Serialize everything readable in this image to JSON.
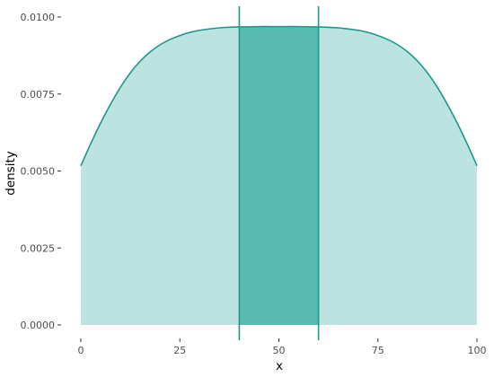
{
  "chart_data": {
    "type": "area",
    "xlabel": "x",
    "ylabel": "density",
    "xlim": [
      0,
      100
    ],
    "ylim": [
      0,
      0.01
    ],
    "x_ticks": [
      0,
      25,
      50,
      75,
      100
    ],
    "x_tick_labels": [
      "0",
      "25",
      "50",
      "75",
      "100"
    ],
    "y_ticks": [
      0,
      0.0025,
      0.005,
      0.0075,
      0.01
    ],
    "y_tick_labels": [
      "0.0000",
      "0.0025",
      "0.0050",
      "0.0075",
      "0.0100"
    ],
    "grid": false,
    "series": [
      {
        "x": [
          0,
          2.5,
          5,
          7.5,
          10,
          12.5,
          15,
          17.5,
          20,
          22.5,
          25,
          27.5,
          30,
          35,
          40,
          45,
          50,
          55,
          60,
          65,
          70,
          72.5,
          75,
          77.5,
          80,
          82.5,
          85,
          87.5,
          90,
          92.5,
          95,
          97.5,
          100
        ],
        "y": [
          0.00517,
          0.00589,
          0.00656,
          0.00717,
          0.00772,
          0.00819,
          0.00857,
          0.00887,
          0.0091,
          0.00927,
          0.0094,
          0.0095,
          0.00957,
          0.00965,
          0.00968,
          0.00969,
          0.00969,
          0.00969,
          0.00968,
          0.00965,
          0.00957,
          0.0095,
          0.0094,
          0.00927,
          0.0091,
          0.00887,
          0.00857,
          0.00819,
          0.00772,
          0.00717,
          0.00656,
          0.00589,
          0.00517
        ]
      }
    ],
    "highlight_interval": [
      40,
      60
    ],
    "colors": {
      "line": "#1a9a8a",
      "fill": "#bce3e0",
      "highlight_fill": "#5ab9b0"
    }
  }
}
